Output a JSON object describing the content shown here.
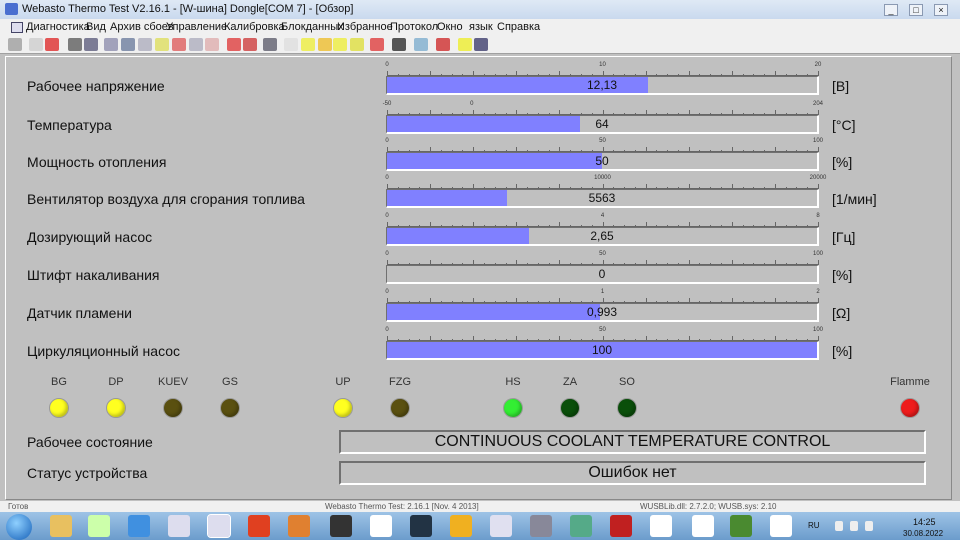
{
  "window": {
    "title": "Webasto Thermo Test V2.16.1 - [W-шина] Dongle[COM 7] - [Обзор]",
    "min": "_",
    "max": "□",
    "close": "×"
  },
  "menu": [
    "Диагностика",
    "Вид",
    "Архив сбоев",
    "Управление",
    "Калибровка",
    "Блокданных",
    "Избранное",
    "Протокол",
    "Окно",
    "язык",
    "Справка"
  ],
  "accent_fill": "#8080ff",
  "gauges": [
    {
      "label": "Рабочее напряжение",
      "value": "12,13",
      "num": 12.13,
      "min": 0,
      "max": 20,
      "ticks": [
        0,
        10,
        20
      ],
      "unit": "[В]"
    },
    {
      "label": "Температура",
      "value": "64",
      "num": 64,
      "min": -50,
      "max": 204,
      "ticks": [
        -50,
        0,
        204
      ],
      "unit": "[°C]"
    },
    {
      "label": "Мощность отопления",
      "value": "50",
      "num": 50,
      "min": 0,
      "max": 100,
      "ticks": [
        0,
        50,
        100
      ],
      "unit": "[%]"
    },
    {
      "label": "Вентилятор воздуха для сгорания топлива",
      "value": "5563",
      "num": 5563,
      "min": 0,
      "max": 20000,
      "ticks": [
        0,
        10000,
        20000
      ],
      "unit": "[1/мин]"
    },
    {
      "label": "Дозирующий насос",
      "value": "2,65",
      "num": 2.65,
      "min": 0,
      "max": 8,
      "ticks": [
        0,
        4,
        8
      ],
      "unit": "[Гц]"
    },
    {
      "label": "Штифт накаливания",
      "value": "0",
      "num": 0,
      "min": 0,
      "max": 100,
      "ticks": [
        0,
        50,
        100
      ],
      "unit": "[%]"
    },
    {
      "label": "Датчик пламени",
      "value": "0,993",
      "num": 0.993,
      "min": 0,
      "max": 2,
      "ticks": [
        0,
        1,
        2
      ],
      "unit": "[Ω]"
    },
    {
      "label": "Циркуляционный насос",
      "value": "100",
      "num": 100,
      "min": 0,
      "max": 100,
      "ticks": [
        0,
        50,
        100
      ],
      "unit": "[%]"
    }
  ],
  "indicators": [
    {
      "name": "BG",
      "color": "#ffff20"
    },
    {
      "name": "DP",
      "color": "#ffff20"
    },
    {
      "name": "KUEV",
      "color": "#5a5010"
    },
    {
      "name": "GS",
      "color": "#5a5010"
    },
    {
      "name": "UP",
      "color": "#ffff20"
    },
    {
      "name": "FZG",
      "color": "#5a5010"
    },
    {
      "name": "HS",
      "color": "#33ee33"
    },
    {
      "name": "ZA",
      "color": "#0a4f0a"
    },
    {
      "name": "SO",
      "color": "#0a4f0a"
    },
    {
      "name": "Flamme",
      "color": "#ee1c1c"
    }
  ],
  "state": {
    "label": "Рабочее состояние",
    "value": "CONTINUOUS COOLANT TEMPERATURE CONTROL"
  },
  "device": {
    "label": "Статус устройства",
    "value": "Ошибок нет"
  },
  "statusbar": {
    "ready": "Готов",
    "version": "Webasto Thermo Test: 2.16.1 [Nov. 4 2013]",
    "lib": "WUSBLib.dll: 2.7.2.0; WUSB.sys: 2.10"
  },
  "taskbar": {
    "lang": "RU",
    "time": "14:25",
    "date": "30.08.2022"
  }
}
